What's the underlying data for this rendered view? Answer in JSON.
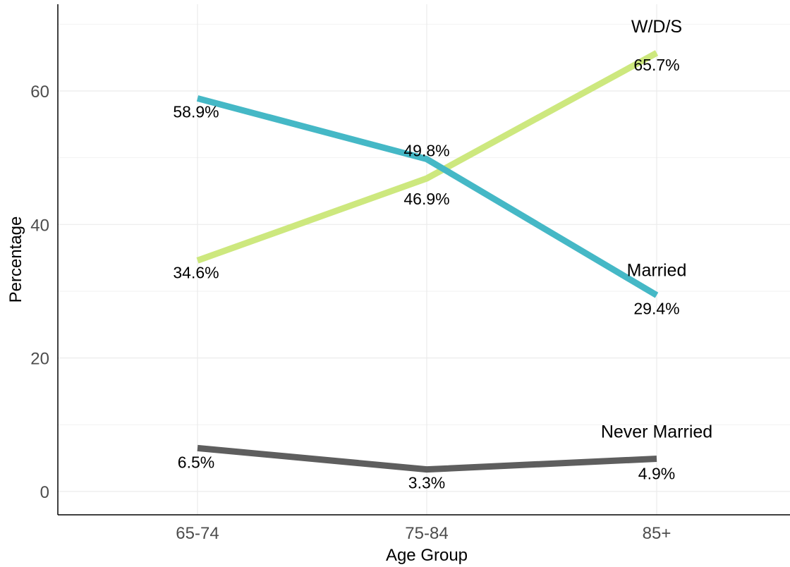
{
  "chart_data": {
    "type": "line",
    "title": "",
    "xlabel": "Age Group",
    "ylabel": "Percentage",
    "categories": [
      "65-74",
      "75-84",
      "85+"
    ],
    "ylim": [
      -3.5,
      73
    ],
    "yticks": [
      0,
      20,
      40,
      60
    ],
    "grid": true,
    "legend": "none (direct labels at line ends)",
    "series": [
      {
        "name": "Married",
        "values": [
          58.9,
          49.8,
          29.4
        ],
        "labels": [
          "58.9%",
          "49.8%",
          "29.4%"
        ],
        "color": "#45b8c6"
      },
      {
        "name": "W/D/S",
        "values": [
          34.6,
          46.9,
          65.7
        ],
        "labels": [
          "34.6%",
          "46.9%",
          "65.7%"
        ],
        "color": "#cde87e"
      },
      {
        "name": "Never Married",
        "values": [
          6.5,
          3.3,
          4.9
        ],
        "labels": [
          "6.5%",
          "3.3%",
          "4.9%"
        ],
        "color": "#5e5e5e"
      }
    ]
  }
}
